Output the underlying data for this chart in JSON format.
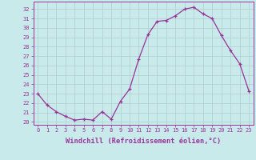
{
  "x": [
    0,
    1,
    2,
    3,
    4,
    5,
    6,
    7,
    8,
    9,
    10,
    11,
    12,
    13,
    14,
    15,
    16,
    17,
    18,
    19,
    20,
    21,
    22,
    23
  ],
  "y": [
    23.0,
    21.8,
    21.1,
    20.6,
    20.2,
    20.3,
    20.2,
    21.1,
    20.3,
    22.2,
    23.5,
    26.7,
    29.3,
    30.7,
    30.8,
    31.3,
    32.0,
    32.2,
    31.5,
    31.0,
    29.2,
    27.6,
    26.2,
    23.3
  ],
  "line_color": "#993399",
  "marker": "+",
  "bg_color": "#c8eaea",
  "grid_color": "#b0cccc",
  "xlabel": "Windchill (Refroidissement éolien,°C)",
  "ylabel_ticks": [
    20,
    21,
    22,
    23,
    24,
    25,
    26,
    27,
    28,
    29,
    30,
    31,
    32
  ],
  "ylim": [
    19.7,
    32.8
  ],
  "xlim": [
    -0.5,
    23.5
  ],
  "tick_color": "#993399",
  "label_color": "#993399",
  "tick_fontsize": 5.0,
  "xlabel_fontsize": 6.2
}
